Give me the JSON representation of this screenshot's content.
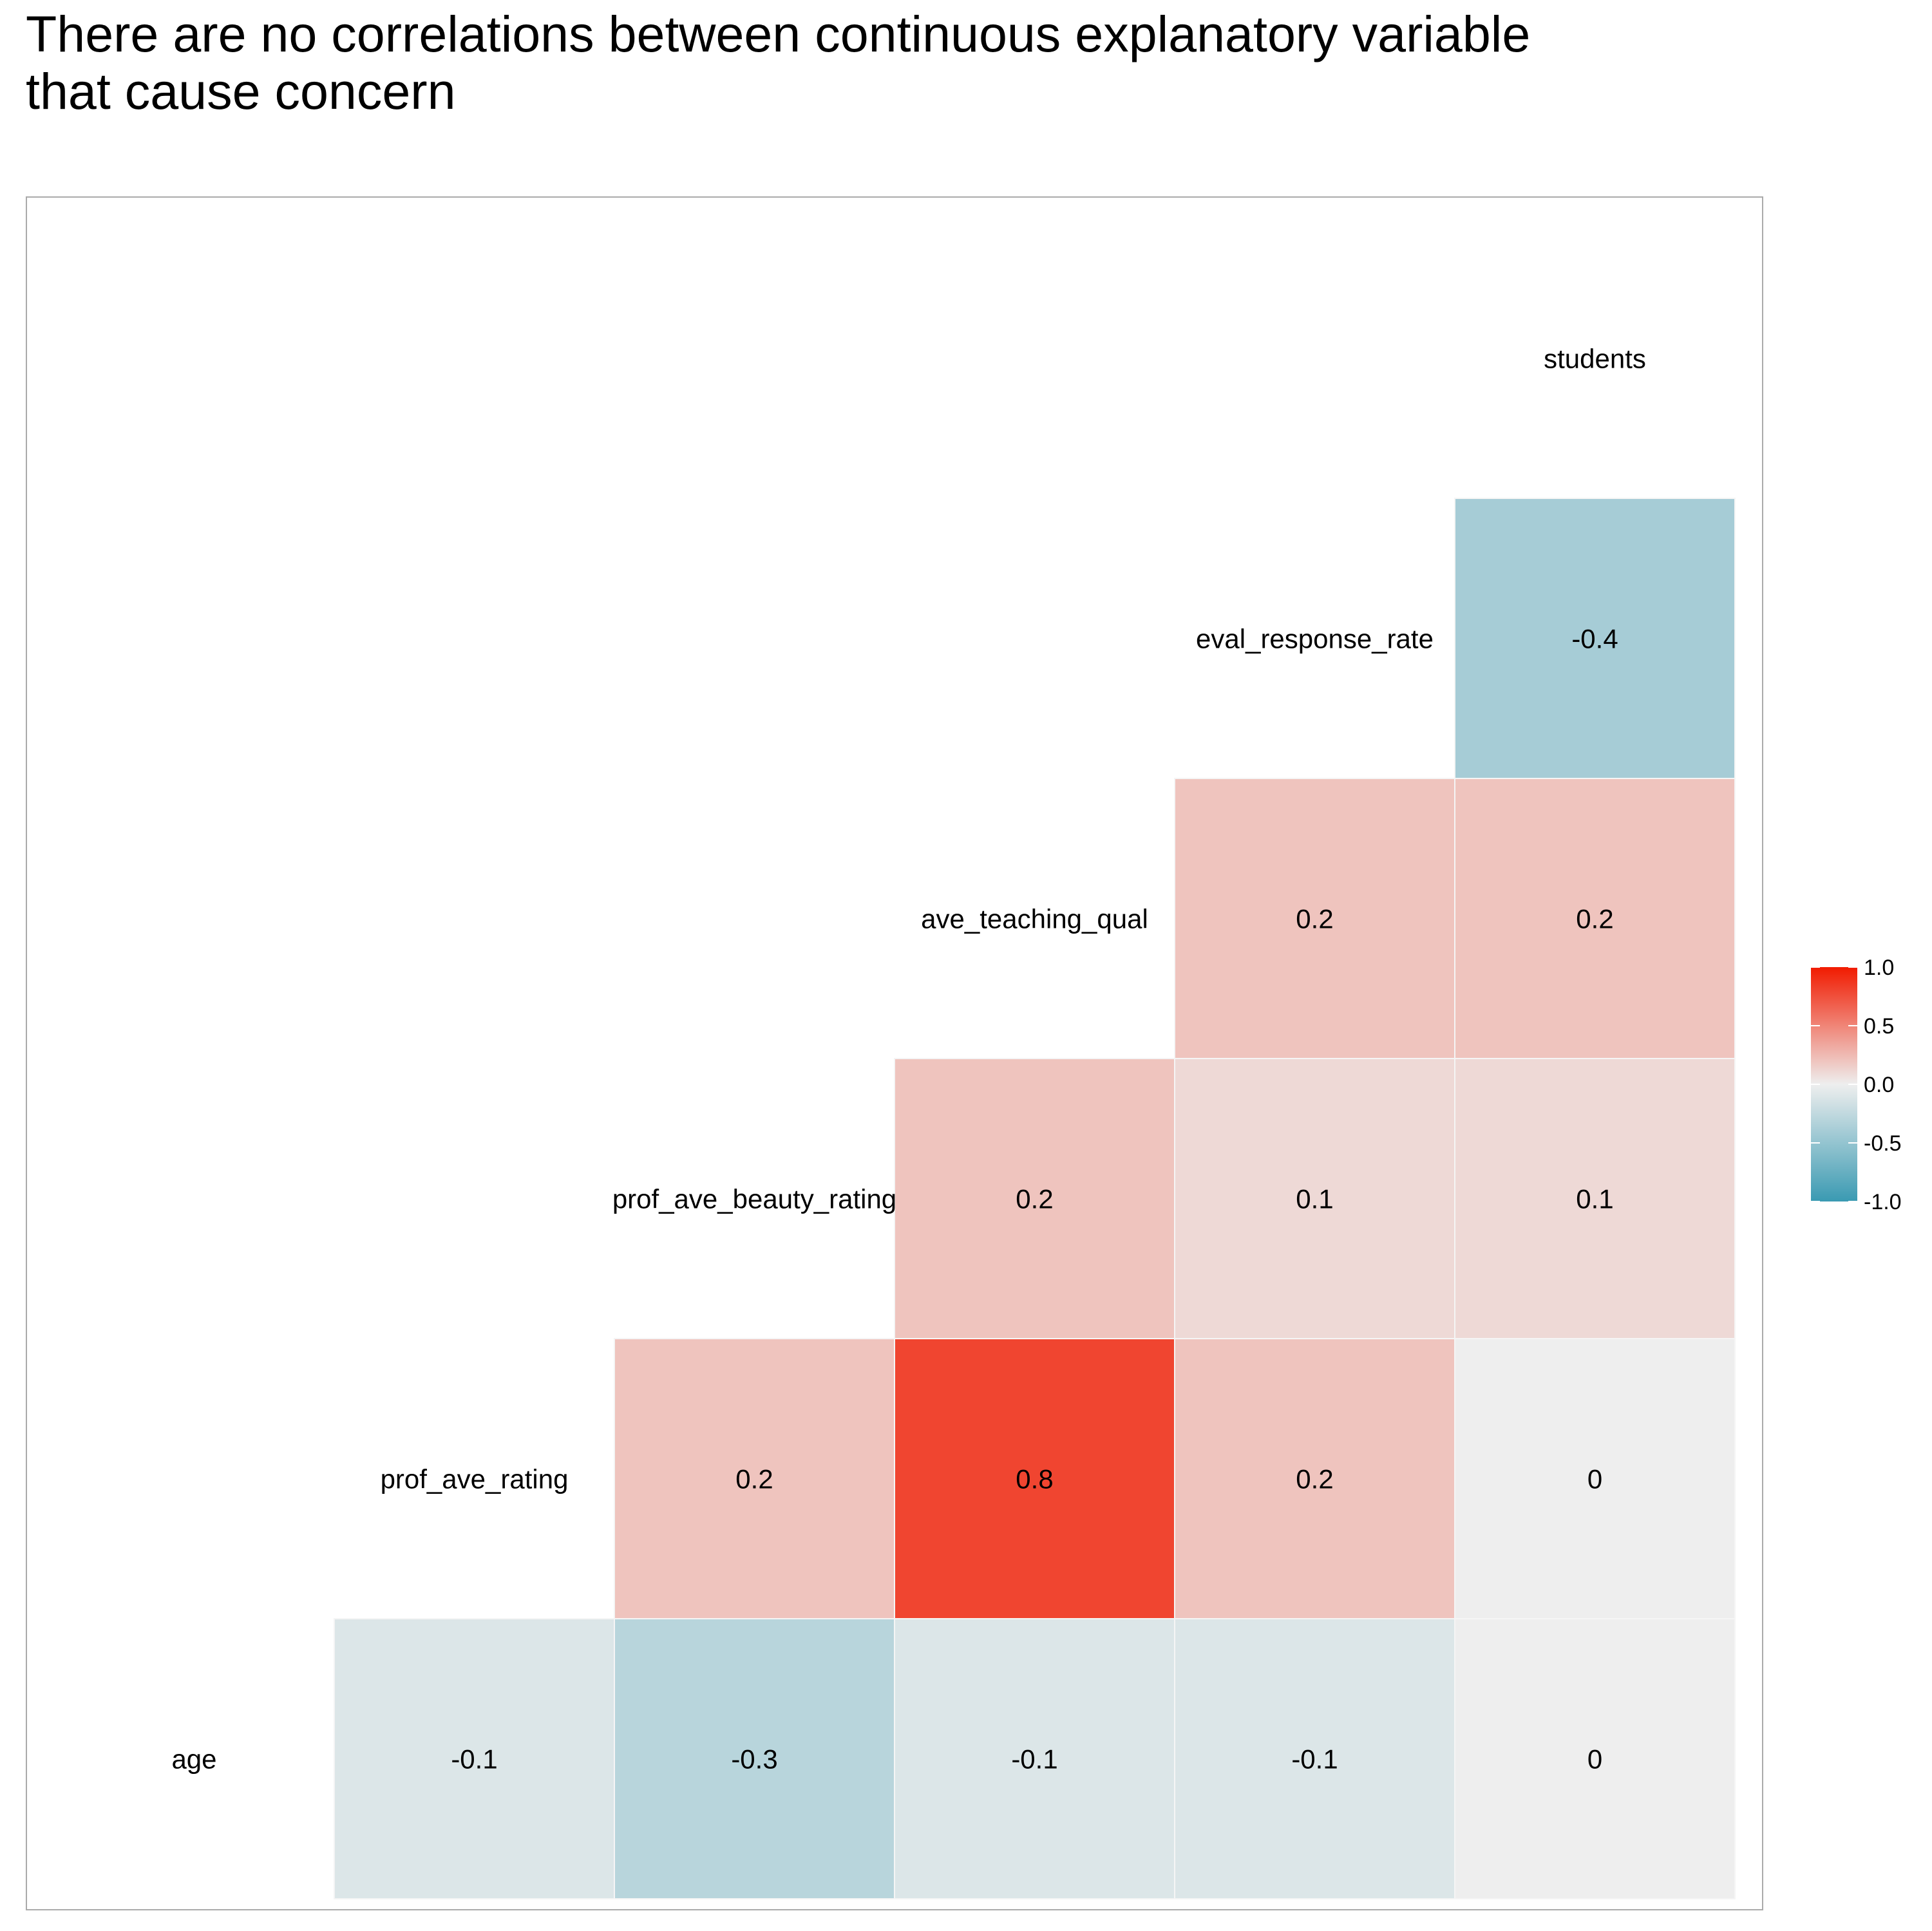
{
  "chart_data": {
    "type": "heatmap",
    "title_lines": [
      "There are no correlations between continuous explanatory variable",
      "that cause concern"
    ],
    "variables": [
      "age",
      "prof_ave_rating",
      "prof_ave_beauty_rating",
      "ave_teaching_qual",
      "eval_response_rate",
      "students"
    ],
    "cells": [
      {
        "row": "age",
        "col": "prof_ave_rating",
        "value": -0.1,
        "label": "-0.1"
      },
      {
        "row": "age",
        "col": "prof_ave_beauty_rating",
        "value": -0.3,
        "label": "-0.3"
      },
      {
        "row": "age",
        "col": "ave_teaching_qual",
        "value": -0.1,
        "label": "-0.1"
      },
      {
        "row": "age",
        "col": "eval_response_rate",
        "value": -0.1,
        "label": "-0.1"
      },
      {
        "row": "age",
        "col": "students",
        "value": 0.0,
        "label": "0"
      },
      {
        "row": "prof_ave_rating",
        "col": "prof_ave_beauty_rating",
        "value": 0.2,
        "label": "0.2"
      },
      {
        "row": "prof_ave_rating",
        "col": "ave_teaching_qual",
        "value": 0.8,
        "label": "0.8"
      },
      {
        "row": "prof_ave_rating",
        "col": "eval_response_rate",
        "value": 0.2,
        "label": "0.2"
      },
      {
        "row": "prof_ave_rating",
        "col": "students",
        "value": 0.0,
        "label": "0"
      },
      {
        "row": "prof_ave_beauty_rating",
        "col": "ave_teaching_qual",
        "value": 0.2,
        "label": "0.2"
      },
      {
        "row": "prof_ave_beauty_rating",
        "col": "eval_response_rate",
        "value": 0.1,
        "label": "0.1"
      },
      {
        "row": "prof_ave_beauty_rating",
        "col": "students",
        "value": 0.1,
        "label": "0.1"
      },
      {
        "row": "ave_teaching_qual",
        "col": "eval_response_rate",
        "value": 0.2,
        "label": "0.2"
      },
      {
        "row": "ave_teaching_qual",
        "col": "students",
        "value": 0.2,
        "label": "0.2"
      },
      {
        "row": "eval_response_rate",
        "col": "students",
        "value": -0.4,
        "label": "-0.4"
      }
    ],
    "legend": {
      "position": "right",
      "range": [
        -1.0,
        1.0
      ],
      "ticks": [
        {
          "value": 1.0,
          "label": "1.0"
        },
        {
          "value": 0.5,
          "label": "0.5"
        },
        {
          "value": 0.0,
          "label": "0.0"
        },
        {
          "value": -0.5,
          "label": "-0.5"
        },
        {
          "value": -1.0,
          "label": "-1.0"
        }
      ]
    },
    "colors": {
      "low": "#3A9AB2",
      "mid": "#EEEEEE",
      "high": "#F11B00",
      "text": "#000000",
      "panel_border": "#AAAAAA",
      "tile_border": "#F5F5F5"
    },
    "grid": false
  }
}
